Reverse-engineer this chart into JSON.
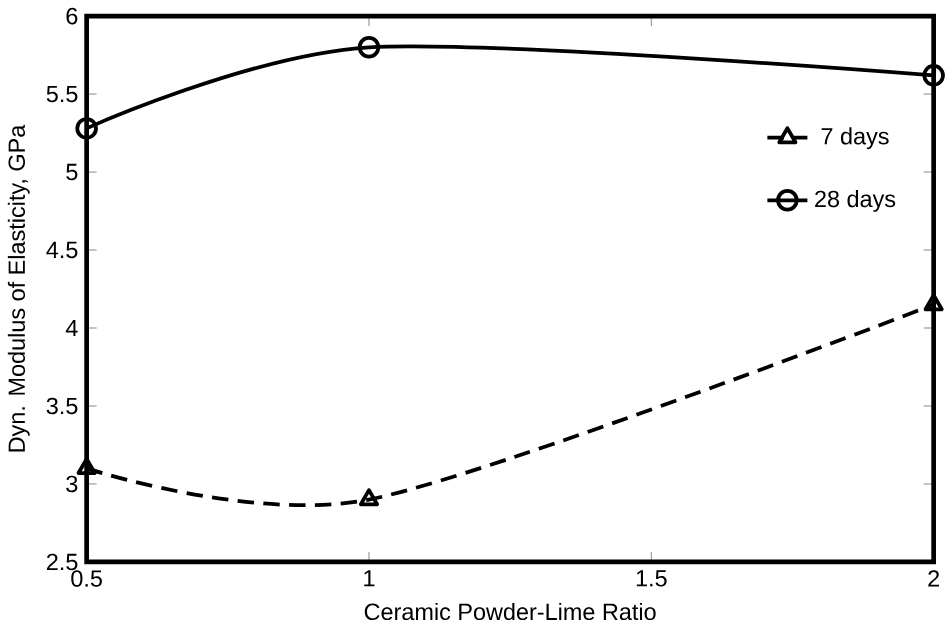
{
  "chart_data": {
    "type": "line",
    "xlabel": "Ceramic Powder-Lime Ratio",
    "ylabel": "Dyn. Modulus of Elasticity, GPa",
    "xlim": [
      0.5,
      2
    ],
    "xticks": [
      0.5,
      1,
      1.5,
      2
    ],
    "ylim": [
      2.5,
      6
    ],
    "yticks": [
      2.5,
      3,
      3.5,
      4,
      4.5,
      5,
      5.5,
      6
    ],
    "x": [
      0.5,
      1,
      2
    ],
    "legend": "right",
    "grid": false,
    "series": [
      {
        "name": "7 days",
        "color": "#000000",
        "values": [
          3.1,
          2.9,
          4.15
        ],
        "marker": "triangle",
        "line_style": "dashed"
      },
      {
        "name": "28 days",
        "color": "#000000",
        "values": [
          5.28,
          5.8,
          5.62
        ],
        "marker": "circle",
        "line_style": "solid"
      }
    ]
  }
}
